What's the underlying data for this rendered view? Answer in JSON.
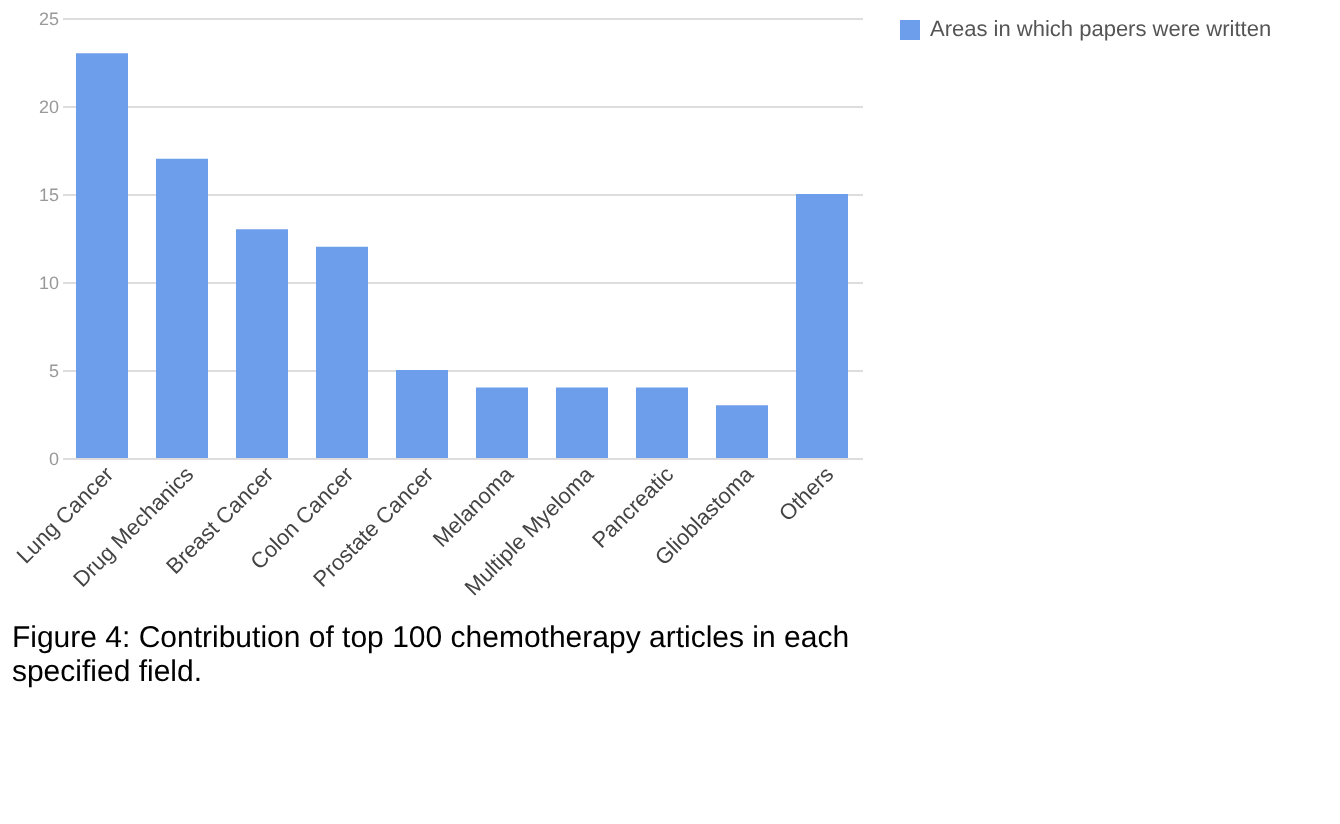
{
  "chart_data": {
    "type": "bar",
    "categories": [
      "Lung Cancer",
      "Drug Mechanics",
      "Breast Cancer",
      "Colon Cancer",
      "Prostate Cancer",
      "Melanoma",
      "Multiple Myeloma",
      "Pancreatic",
      "Glioblastoma",
      "Others"
    ],
    "series": [
      {
        "name": "Areas in which papers were written",
        "color": "#6d9eeb",
        "values": [
          23,
          17,
          13,
          12,
          5,
          4,
          4,
          4,
          3,
          15
        ]
      }
    ],
    "ylim": [
      0,
      25
    ],
    "yticks": [
      0,
      5,
      10,
      15,
      20,
      25
    ],
    "grid": "y",
    "legend": "top right",
    "annotations": [
      "Figure 4: Contribution of top 100 chemotherapy articles in each specified field."
    ]
  }
}
